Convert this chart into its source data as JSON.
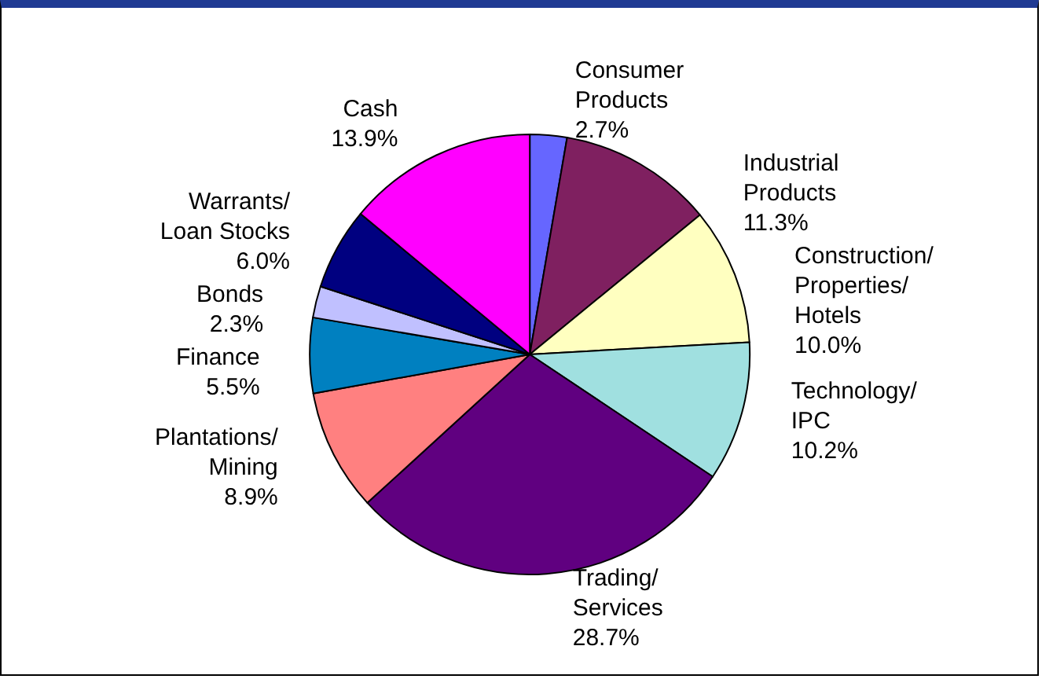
{
  "chart_data": {
    "type": "pie",
    "categories": [
      "Consumer Products",
      "Industrial Products",
      "Construction/ Properties/ Hotels",
      "Technology/ IPC",
      "Trading/ Services",
      "Plantations/ Mining",
      "Finance",
      "Bonds",
      "Warrants/ Loan Stocks",
      "Cash"
    ],
    "values": [
      2.7,
      11.3,
      10.0,
      10.2,
      28.7,
      8.9,
      5.5,
      2.3,
      6.0,
      13.9
    ],
    "value_labels": [
      "2.7%",
      "11.3%",
      "10.0%",
      "10.2%",
      "28.7%",
      "8.9%",
      "5.5%",
      "2.3%",
      "6.0%",
      "13.9%"
    ],
    "colors": [
      "#6666ff",
      "#7f2060",
      "#ffffc0",
      "#a0e0e0",
      "#600080",
      "#ff8080",
      "#0080c0",
      "#c0c0ff",
      "#000080",
      "#ff00ff"
    ],
    "legend": false
  }
}
